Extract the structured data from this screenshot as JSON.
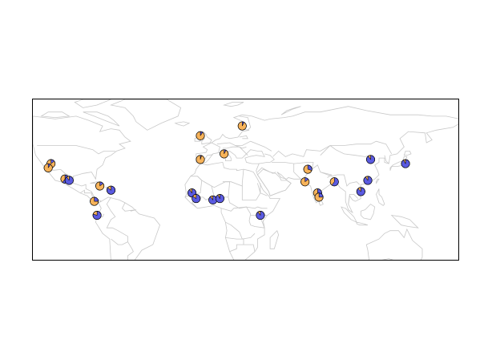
{
  "colors": {
    "primary": "#5a5ae0",
    "secondary": "#f7b35a",
    "coast": "#c8c8c8",
    "frame": "#000000"
  },
  "map": {
    "projection": "equirectangular",
    "lon_range": [
      -126,
      180
    ],
    "lat_range": [
      -34,
      82
    ],
    "markers": [
      {
        "id": "usa-west-1",
        "lon": -113,
        "lat": 36,
        "primary_share": 0.15
      },
      {
        "id": "usa-west-2",
        "lon": -115,
        "lat": 33,
        "primary_share": 0.1
      },
      {
        "id": "mexico-1",
        "lon": -103,
        "lat": 25,
        "primary_share": 0.6
      },
      {
        "id": "mexico-2",
        "lon": -100,
        "lat": 24,
        "primary_share": 0.9
      },
      {
        "id": "cuba",
        "lon": -78,
        "lat": 20,
        "primary_share": 0.15
      },
      {
        "id": "dominican",
        "lon": -70,
        "lat": 17,
        "primary_share": 0.85
      },
      {
        "id": "colombia",
        "lon": -82,
        "lat": 9,
        "primary_share": 0.25
      },
      {
        "id": "peru",
        "lon": -80,
        "lat": -1,
        "primary_share": 0.8
      },
      {
        "id": "britain",
        "lon": -6,
        "lat": 56,
        "primary_share": 0.1
      },
      {
        "id": "finland",
        "lon": 24,
        "lat": 63,
        "primary_share": 0.08
      },
      {
        "id": "iberia",
        "lon": -6,
        "lat": 39,
        "primary_share": 0.05
      },
      {
        "id": "italy",
        "lon": 11,
        "lat": 43,
        "primary_share": 0.08
      },
      {
        "id": "senegal",
        "lon": -12,
        "lat": 15,
        "primary_share": 0.9
      },
      {
        "id": "mali",
        "lon": -9,
        "lat": 11,
        "primary_share": 0.85
      },
      {
        "id": "nigeria-1",
        "lon": 3,
        "lat": 10,
        "primary_share": 0.9
      },
      {
        "id": "nigeria-2",
        "lon": 8,
        "lat": 11,
        "primary_share": 0.92
      },
      {
        "id": "kenya",
        "lon": 37,
        "lat": -1,
        "primary_share": 0.9
      },
      {
        "id": "pakistan",
        "lon": 71,
        "lat": 32,
        "primary_share": 0.3
      },
      {
        "id": "india-north",
        "lon": 69,
        "lat": 23,
        "primary_share": 0.15
      },
      {
        "id": "bangladesh",
        "lon": 90,
        "lat": 23,
        "primary_share": 0.6
      },
      {
        "id": "india-south-1",
        "lon": 78,
        "lat": 15,
        "primary_share": 0.3
      },
      {
        "id": "india-south-2",
        "lon": 79,
        "lat": 12,
        "primary_share": 0.25
      },
      {
        "id": "china-north",
        "lon": 116,
        "lat": 39,
        "primary_share": 0.9
      },
      {
        "id": "china-south",
        "lon": 114,
        "lat": 24,
        "primary_share": 0.9
      },
      {
        "id": "vietnam",
        "lon": 109,
        "lat": 16,
        "primary_share": 0.88
      },
      {
        "id": "japan",
        "lon": 141,
        "lat": 36,
        "primary_share": 0.92
      }
    ]
  }
}
